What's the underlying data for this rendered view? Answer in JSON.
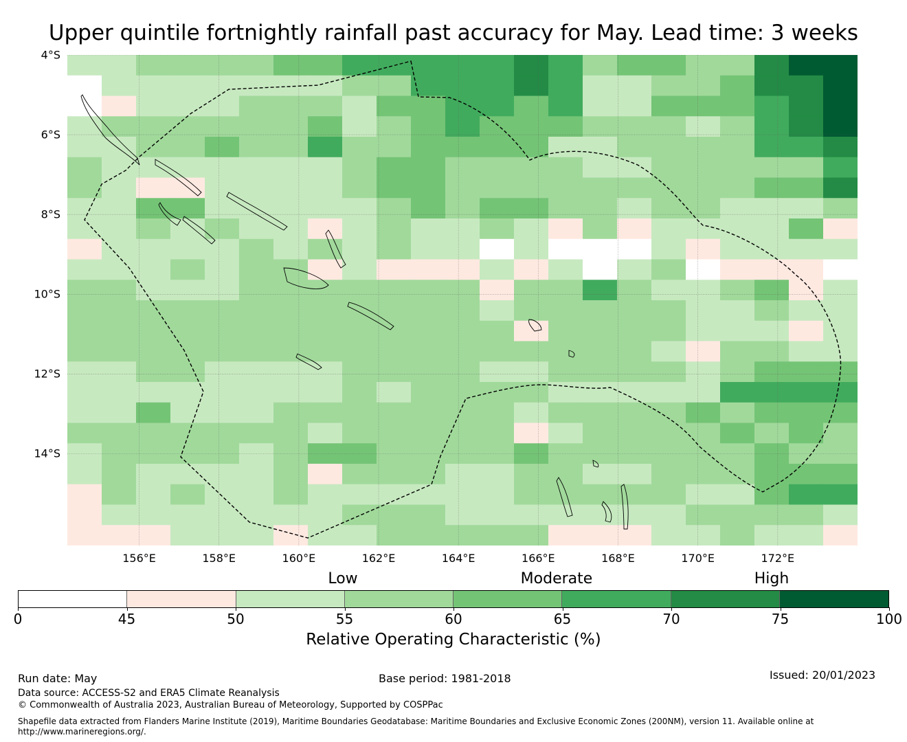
{
  "title": "Upper quintile fortnightly rainfall past accuracy for May. Lead time: 3 weeks",
  "map": {
    "lon_range": [
      154.2,
      174.0
    ],
    "lat_range": [
      -16.3,
      -4.0
    ],
    "lat_labels": [
      "4°S",
      "6°S",
      "8°S",
      "10°S",
      "12°S",
      "14°S"
    ],
    "lat_values": [
      -4,
      -6,
      -8,
      -10,
      -12,
      -14
    ],
    "lon_labels": [
      "156°E",
      "158°E",
      "160°E",
      "162°E",
      "164°E",
      "166°E",
      "168°E",
      "170°E",
      "172°E"
    ],
    "lon_values": [
      156,
      158,
      160,
      162,
      164,
      166,
      168,
      170,
      172
    ],
    "grid": "on",
    "region_boundary": "dashed EEZ outline (Solomon Islands and Vanuatu)",
    "cell_levels": [
      "22333344555556534433677",
      "02222222335556522334667",
      "01222333244554522444567",
      "23333334234544433323567",
      "22334335334444223333556",
      "32222222344333322333335",
      "32112222344333333333446",
      "22442222234344332332223",
      "22323221232232131222241",
      "12222323232202000212222",
      "22232331211121202301110",
      "33222333333313353223412",
      "33333333333323333322322",
      "33333333333331333322212",
      "33333333333333333213322",
      "22332222333322333323444",
      "22222222323333222225555",
      "22422233333332333343444",
      "33333332333331233334343",
      "23333234433334333333433",
      "23222231333223322333444",
      "13232232222223333322455",
      "12222222333222222233332",
      "11122212233333111223221"
    ]
  },
  "colorbar": {
    "category_labels": [
      "Low",
      "Moderate",
      "High"
    ],
    "ticks": [
      "0",
      "45",
      "50",
      "55",
      "60",
      "65",
      "70",
      "75",
      "100"
    ],
    "colors": [
      "#ffffff",
      "#fee9e1",
      "#c7e9c0",
      "#a1d99b",
      "#74c476",
      "#41ab5d",
      "#238b45",
      "#005a32"
    ],
    "title": "Relative Operating Characteristic (%)"
  },
  "footer": {
    "run_date": "Run date: May",
    "base_period": "Base period: 1981-2018",
    "issued": "Issued: 20/01/2023",
    "data_source": "Data source: ACCESS-S2 and ERA5 Climate Reanalysis",
    "copyright": "© Commonwealth of Australia 2023, Australian Bureau of Meteorology, Supported by COSPPac",
    "shapefile_line1": "Shapefile data extracted from Flanders Marine Institute (2019), Maritime Boundaries Geodatabase: Maritime Boundaries and Exclusive Economic Zones (200NM), version 11. Available online at",
    "shapefile_line2": "http://www.marineregions.org/."
  }
}
